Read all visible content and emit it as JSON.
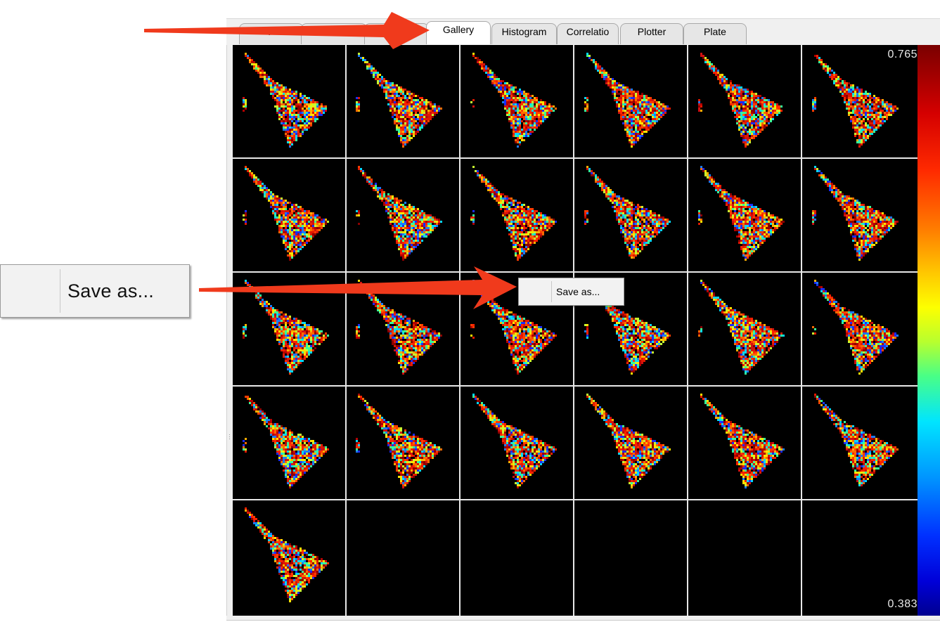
{
  "tabs": [
    {
      "label": "P",
      "active": false
    },
    {
      "label": "",
      "active": false
    },
    {
      "label": "",
      "active": false
    },
    {
      "label": "Gallery",
      "active": true
    },
    {
      "label": "Histogram",
      "active": false
    },
    {
      "label": "Correlatio",
      "active": false
    },
    {
      "label": "Plotter",
      "active": false
    },
    {
      "label": "Plate",
      "active": false
    }
  ],
  "gallery": {
    "rows": 5,
    "columns": 6,
    "image_count": 25,
    "colormap": "jet"
  },
  "colorbar": {
    "max_label": "0.765",
    "min_label": "0.383"
  },
  "context_menu": {
    "item_label": "Save as..."
  },
  "zoomed_context_menu": {
    "item_label": "Save as..."
  },
  "colors": {
    "arrow": "#f03a1c",
    "background": "#000000",
    "grid_lines": "#e8e8e8",
    "tab_strip": "#f0f0f0"
  }
}
